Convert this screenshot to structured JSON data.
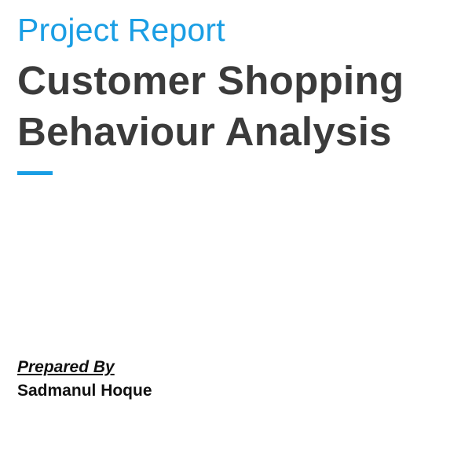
{
  "cover": {
    "eyebrow": "Project Report",
    "title_line_1": "Customer Shopping",
    "title_line_2": "Behaviour Analysis",
    "accent_color": "#1a9ee4",
    "title_color": "#3b3b3b"
  },
  "credits": {
    "prepared_label": "Prepared By",
    "author": "Sadmanul Hoque"
  }
}
